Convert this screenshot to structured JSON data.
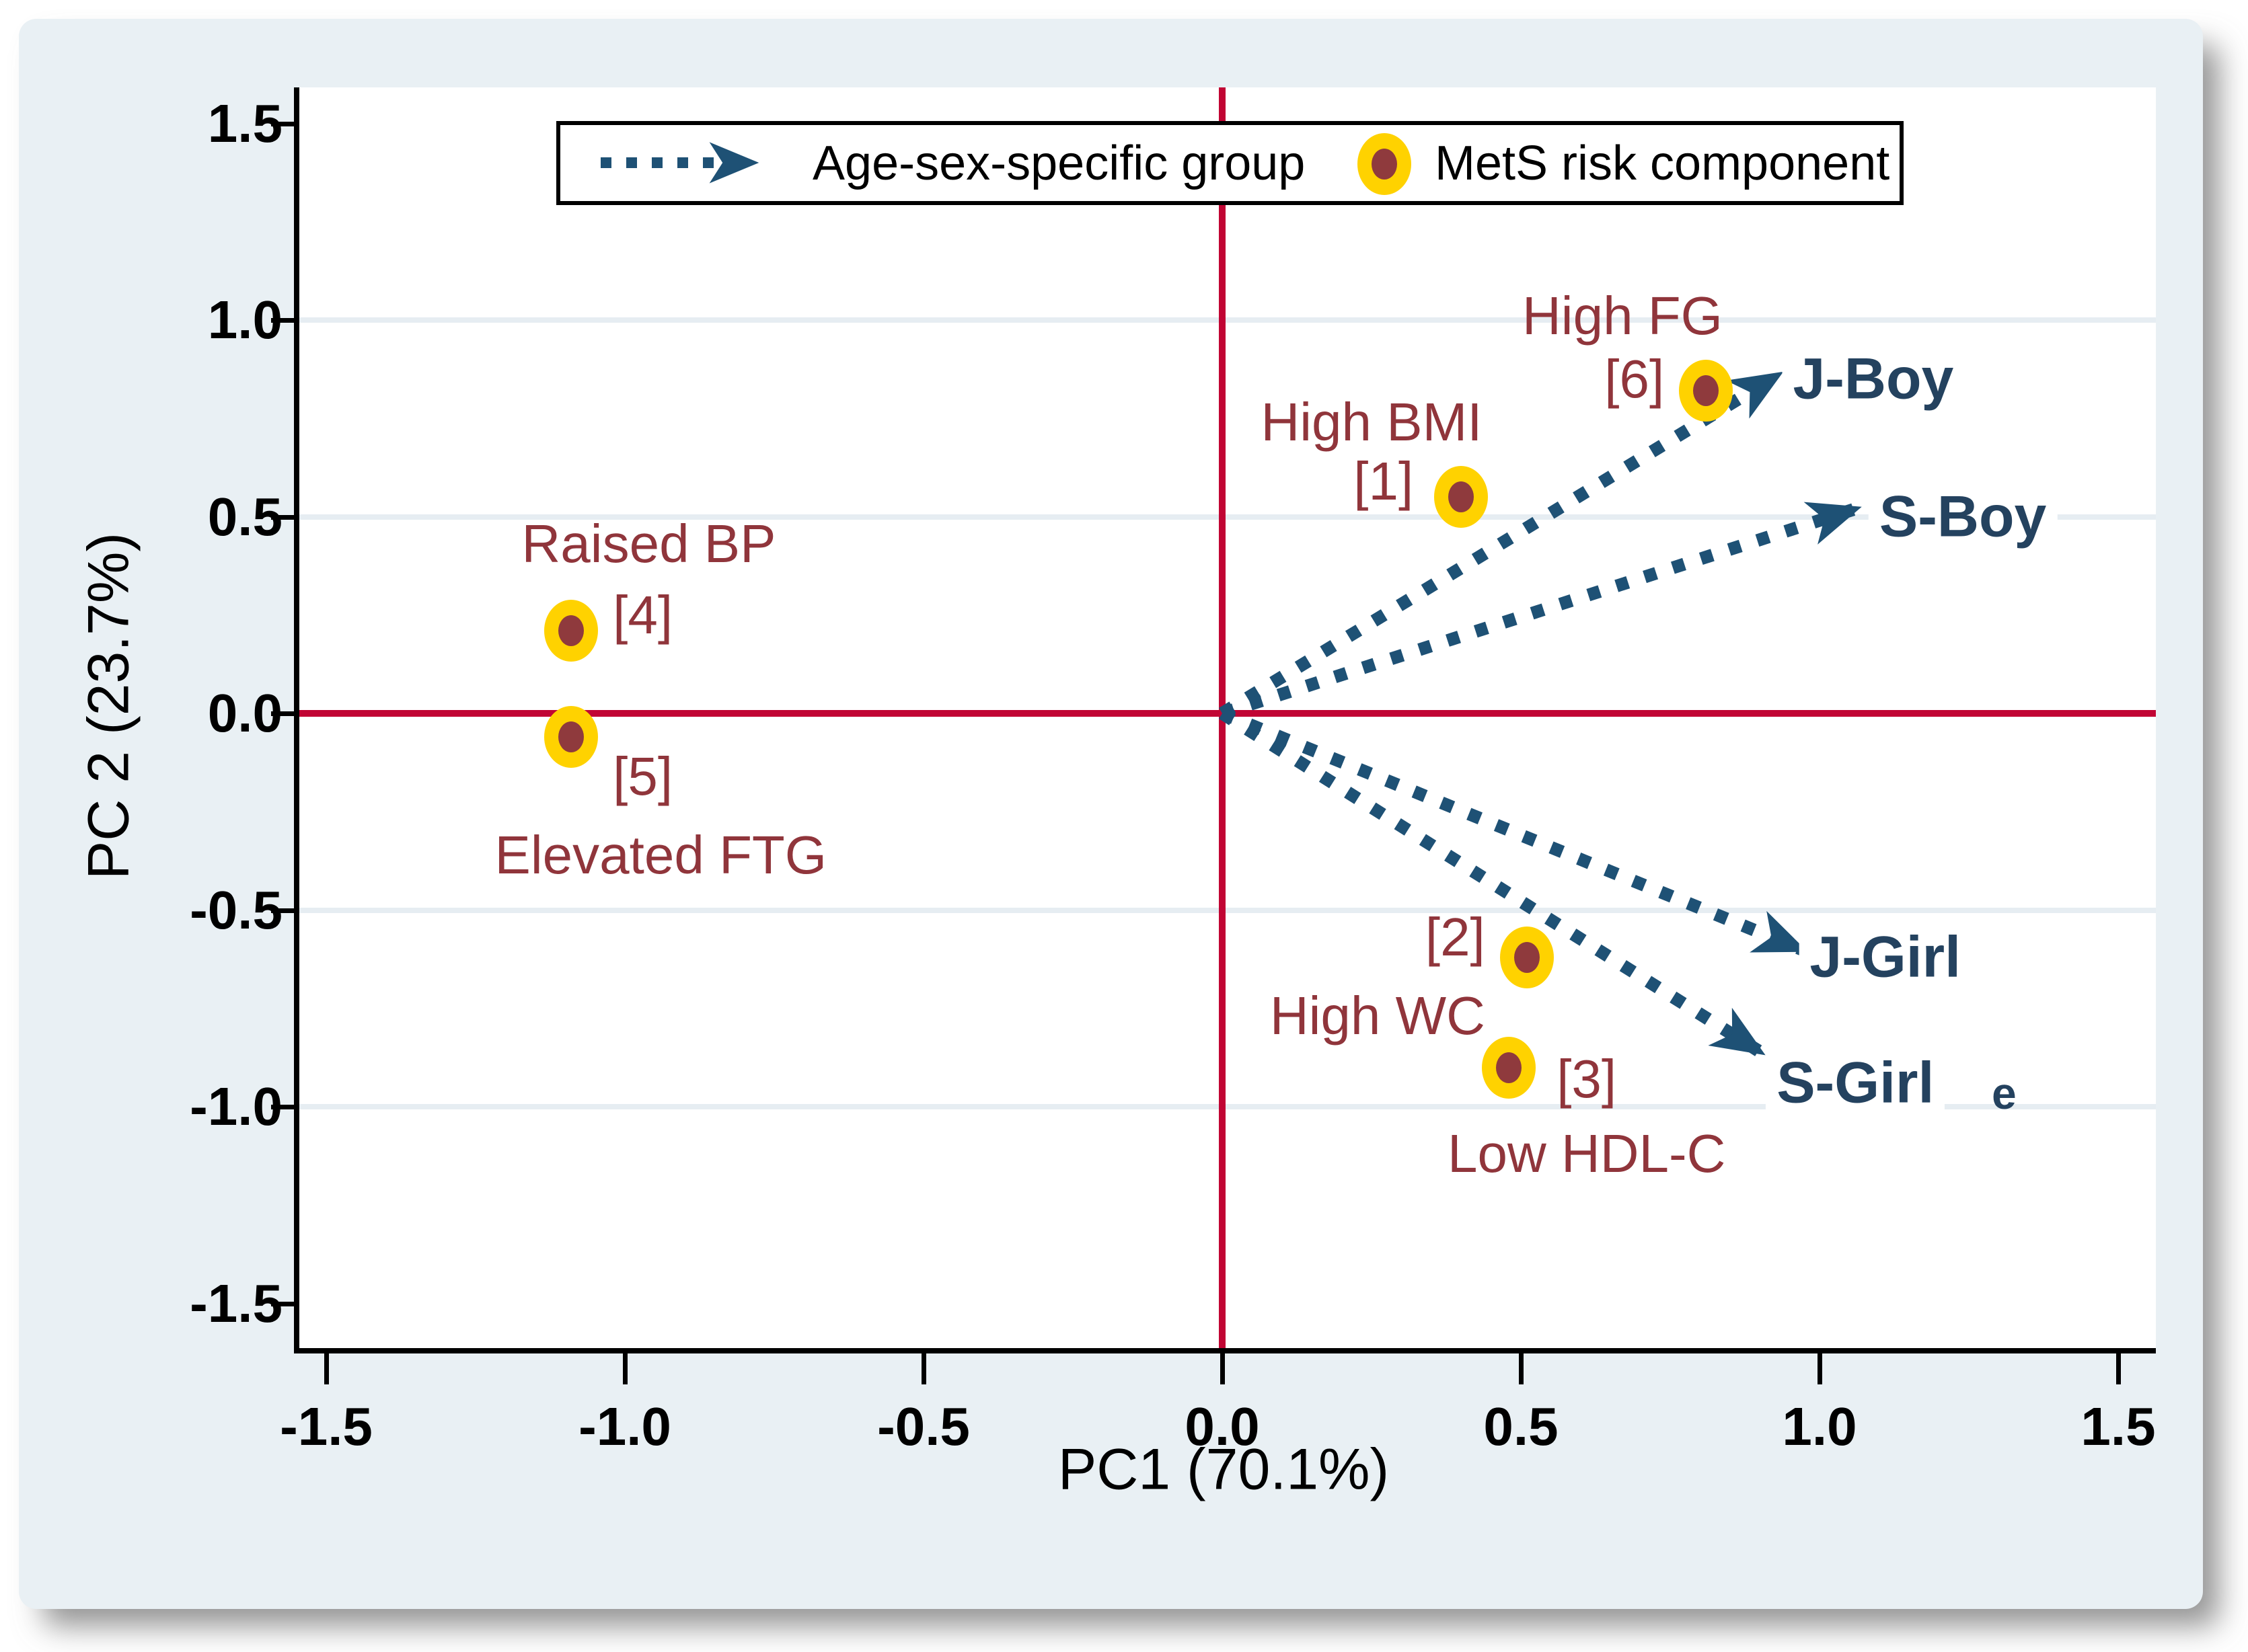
{
  "colors": {
    "card_bg": "#e9f0f4",
    "plot_bg": "#ffffff",
    "axis_black": "#000000",
    "zero_line_red": "#c10534",
    "grid_faint": "#e6edf2",
    "arrow_navy": "#1e5175",
    "group_label_navy": "#24425f",
    "component_maroon": "#90353b",
    "marker_gold": "#ffd200",
    "marker_core_maroon": "#8f3a3d"
  },
  "legend": {
    "arrow_label": "Age-sex-specific group",
    "marker_label": "MetS risk component"
  },
  "chart_data": {
    "type": "scatter",
    "subtype": "pca-biplot",
    "title": "",
    "xlabel": "PC1 (70.1%)",
    "ylabel": "PC 2 (23.7%)",
    "xlim": [
      -1.55,
      1.56
    ],
    "ylim": [
      -1.61,
      1.59
    ],
    "grid": "faint horizontal lines at ±0.5 and ±1.0",
    "grid_y": [
      1.0,
      0.5,
      -0.5,
      -1.0
    ],
    "zero_lines": true,
    "x_ticks": [
      {
        "v": -1.5,
        "label": "-1.5"
      },
      {
        "v": -1.0,
        "label": "-1.0"
      },
      {
        "v": -0.5,
        "label": "-0.5"
      },
      {
        "v": 0.0,
        "label": "0.0"
      },
      {
        "v": 0.5,
        "label": "0.5"
      },
      {
        "v": 1.0,
        "label": "1.0"
      },
      {
        "v": 1.5,
        "label": "1.5"
      }
    ],
    "y_ticks": [
      {
        "v": 1.5,
        "label": "1.5"
      },
      {
        "v": 1.0,
        "label": "1.0"
      },
      {
        "v": 0.5,
        "label": "0.5"
      },
      {
        "v": 0.0,
        "label": "0.0"
      },
      {
        "v": -0.5,
        "label": "-0.5"
      },
      {
        "v": -1.0,
        "label": "-1.0"
      },
      {
        "v": -1.5,
        "label": "-1.5"
      }
    ],
    "components": [
      {
        "bracket": "[1]",
        "name": "High BMI",
        "x": 0.4,
        "y": 0.55,
        "name_pos": {
          "x": 0.25,
          "y": 0.74
        },
        "bracket_pos": {
          "x": 0.27,
          "y": 0.59
        }
      },
      {
        "bracket": "[2]",
        "name": "High WC",
        "x": 0.51,
        "y": -0.62,
        "name_pos": {
          "x": 0.26,
          "y": -0.77
        },
        "bracket_pos": {
          "x": 0.39,
          "y": -0.57
        }
      },
      {
        "bracket": "[3]",
        "name": "Low HDL-C",
        "x": 0.48,
        "y": -0.9,
        "name_pos": {
          "x": 0.61,
          "y": -1.12
        },
        "bracket_pos": {
          "x": 0.61,
          "y": -0.93
        }
      },
      {
        "bracket": "[4]",
        "name": "Raised BP",
        "x": -1.09,
        "y": 0.21,
        "name_pos": {
          "x": -0.96,
          "y": 0.43
        },
        "bracket_pos": {
          "x": -0.97,
          "y": 0.25
        }
      },
      {
        "bracket": "[5]",
        "name": "Elevated FTG",
        "x": -1.09,
        "y": -0.06,
        "name_pos": {
          "x": -0.94,
          "y": -0.36
        },
        "bracket_pos": {
          "x": -0.97,
          "y": -0.16
        }
      },
      {
        "bracket": "[6]",
        "name": "High FG",
        "x": 0.81,
        "y": 0.82,
        "name_pos": {
          "x": 0.67,
          "y": 1.01
        },
        "bracket_pos": {
          "x": 0.69,
          "y": 0.85
        }
      }
    ],
    "groups": [
      {
        "name": "J-Boy",
        "x": 0.93,
        "y": 0.86,
        "label_pos": {
          "x": 1.09,
          "y": 0.85
        }
      },
      {
        "name": "S-Boy",
        "x": 1.06,
        "y": 0.52,
        "label_pos": {
          "x": 1.24,
          "y": 0.5
        }
      },
      {
        "name": "J-Girl",
        "x": 0.97,
        "y": -0.6,
        "label_pos": {
          "x": 1.11,
          "y": -0.62
        }
      },
      {
        "name": "S-Girl",
        "x": 0.9,
        "y": -0.86,
        "label_pos": {
          "x": 1.06,
          "y": -0.94
        }
      }
    ],
    "stray_fragment": "e"
  }
}
